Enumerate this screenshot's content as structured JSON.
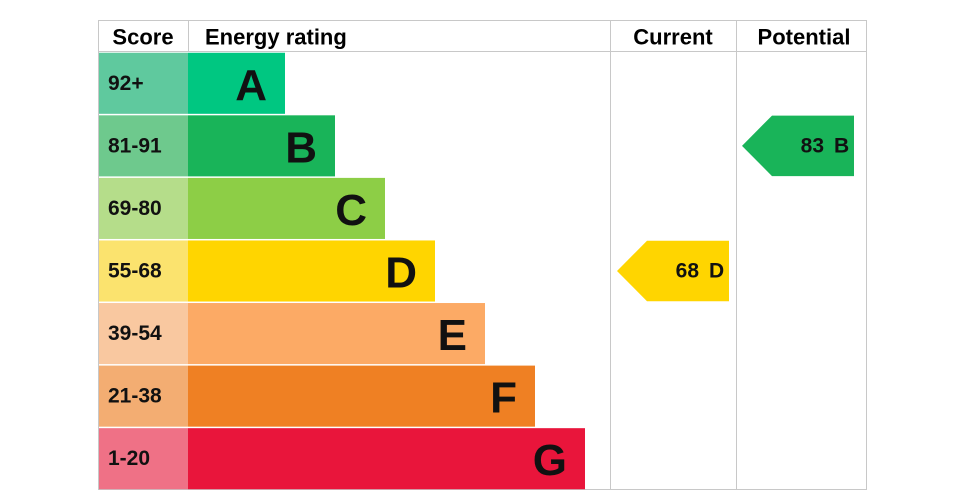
{
  "header": {
    "score": "Score",
    "energy_rating": "Energy rating",
    "current": "Current",
    "potential": "Potential"
  },
  "bands": [
    {
      "score": "92+",
      "letter": "A",
      "color": "#00c781",
      "score_color": "#5fc99e"
    },
    {
      "score": "81-91",
      "letter": "B",
      "color": "#19b459",
      "score_color": "#6ec98d"
    },
    {
      "score": "69-80",
      "letter": "C",
      "color": "#8dce46",
      "score_color": "#b5dd8a"
    },
    {
      "score": "55-68",
      "letter": "D",
      "color": "#ffd500",
      "score_color": "#fbe36e"
    },
    {
      "score": "39-54",
      "letter": "E",
      "color": "#fcaa65",
      "score_color": "#f9c8a0"
    },
    {
      "score": "21-38",
      "letter": "F",
      "color": "#ef8023",
      "score_color": "#f3ad72"
    },
    {
      "score": "1-20",
      "letter": "G",
      "color": "#e9153b",
      "score_color": "#ef7186"
    }
  ],
  "current": {
    "score": 68,
    "band": "D"
  },
  "potential": {
    "score": 83,
    "band": "B"
  }
}
